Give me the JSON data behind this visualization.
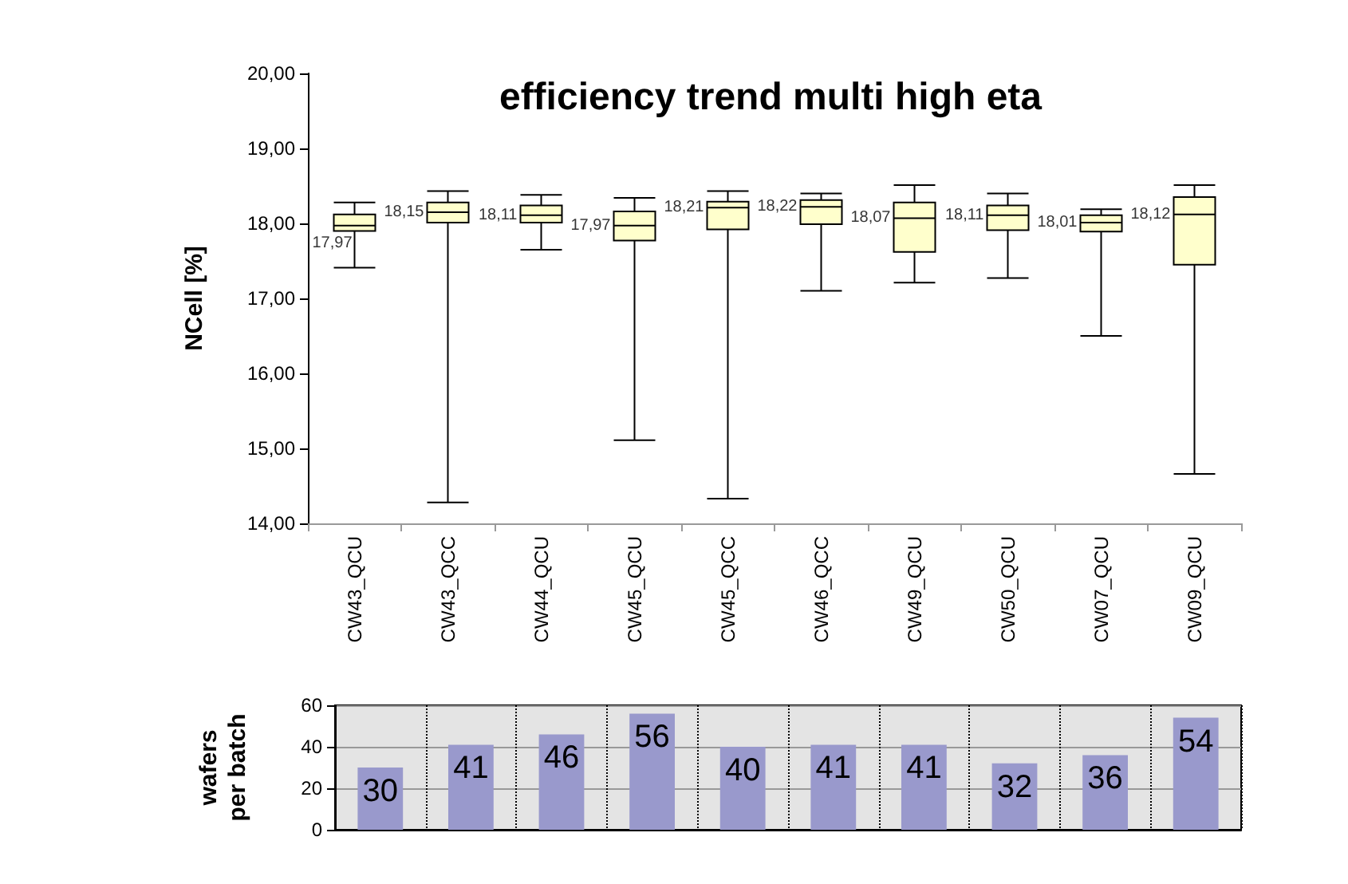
{
  "chart_data": [
    {
      "type": "box",
      "title": "efficiency trend multi high eta",
      "ylabel": "NCell [%]",
      "categories": [
        "CW43_QCU",
        "CW43_QCC",
        "CW44_QCU",
        "CW45_QCU",
        "CW45_QCC",
        "CW46_QCC",
        "CW49_QCU",
        "CW50_QCU",
        "CW07_QCU",
        "CW09_QCU"
      ],
      "color": "#ffffcc",
      "boxes": [
        {
          "low": 17.41,
          "q1": 17.9,
          "median": 17.97,
          "q3": 18.12,
          "high": 18.28
        },
        {
          "low": 14.28,
          "q1": 18.01,
          "median": 18.15,
          "q3": 18.28,
          "high": 18.43
        },
        {
          "low": 17.65,
          "q1": 18.01,
          "median": 18.11,
          "q3": 18.24,
          "high": 18.38
        },
        {
          "low": 15.11,
          "q1": 17.77,
          "median": 17.97,
          "q3": 18.16,
          "high": 18.34
        },
        {
          "low": 14.33,
          "q1": 17.92,
          "median": 18.21,
          "q3": 18.29,
          "high": 18.43
        },
        {
          "low": 17.1,
          "q1": 17.99,
          "median": 18.22,
          "q3": 18.31,
          "high": 18.4
        },
        {
          "low": 17.21,
          "q1": 17.62,
          "median": 18.07,
          "q3": 18.28,
          "high": 18.51
        },
        {
          "low": 17.27,
          "q1": 17.91,
          "median": 18.11,
          "q3": 18.24,
          "high": 18.4
        },
        {
          "low": 16.5,
          "q1": 17.89,
          "median": 18.01,
          "q3": 18.11,
          "high": 18.19
        },
        {
          "low": 14.66,
          "q1": 17.45,
          "median": 18.12,
          "q3": 18.35,
          "high": 18.51
        }
      ],
      "annotations": [
        {
          "text": "17,97",
          "x": "CW43_QCU",
          "y": 17.97
        },
        {
          "text": "18,15",
          "x": "CW43_QCC",
          "y": 18.15
        },
        {
          "text": "18,11",
          "x": "CW44_QCU",
          "y": 18.11
        },
        {
          "text": "17,97",
          "x": "CW45_QCU",
          "y": 17.97
        },
        {
          "text": "18,21",
          "x": "CW45_QCC",
          "y": 18.21
        },
        {
          "text": "18,22",
          "x": "CW46_QCC",
          "y": 18.22
        },
        {
          "text": "18,07",
          "x": "CW49_QCU",
          "y": 18.07
        },
        {
          "text": "18,11",
          "x": "CW50_QCU",
          "y": 18.11
        },
        {
          "text": "18,01",
          "x": "CW07_QCU",
          "y": 18.01
        },
        {
          "text": "18,12",
          "x": "CW09_QCU",
          "y": 18.12
        }
      ],
      "ylim": [
        14,
        20
      ],
      "yticks": [
        {
          "value": 14,
          "label": "14,00"
        },
        {
          "value": 15,
          "label": "15,00"
        },
        {
          "value": 16,
          "label": "16,00"
        },
        {
          "value": 17,
          "label": "17,00"
        },
        {
          "value": 18,
          "label": "18,00"
        },
        {
          "value": 19,
          "label": "19,00"
        },
        {
          "value": 20,
          "label": "20,00"
        }
      ],
      "grid": false
    },
    {
      "type": "bar",
      "ylabel": "wafers per batch",
      "categories": [
        null,
        null,
        null,
        null,
        null,
        null,
        null,
        null,
        null,
        null
      ],
      "values": [
        30,
        41,
        46,
        56,
        40,
        41,
        41,
        32,
        36,
        54
      ],
      "color": "#9999cc",
      "ylim": [
        0,
        60
      ],
      "yticks": [
        0,
        20,
        40,
        60
      ],
      "grid": true,
      "data_labels": true,
      "tick_labels": "y"
    }
  ]
}
